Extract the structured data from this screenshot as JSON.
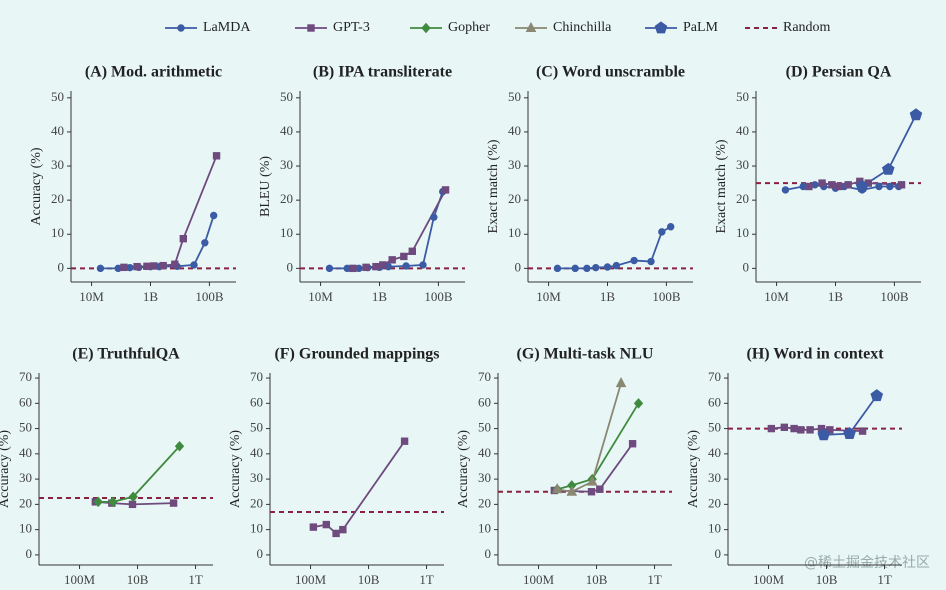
{
  "legend": [
    {
      "name": "LaMDA",
      "color": "#3b5ba5",
      "marker": "circle"
    },
    {
      "name": "GPT-3",
      "color": "#6e4a7e",
      "marker": "square"
    },
    {
      "name": "Gopher",
      "color": "#3f8a3f",
      "marker": "diamond"
    },
    {
      "name": "Chinchilla",
      "color": "#8a8772",
      "marker": "triangle"
    },
    {
      "name": "PaLM",
      "color": "#3b5ba5",
      "marker": "pentagon"
    },
    {
      "name": "Random",
      "color": "#8b2040",
      "marker": "dashed"
    }
  ],
  "watermark": "@稀土掘金技术社区",
  "chart_data": [
    {
      "type": "line",
      "title": "(A) Mod. arithmetic",
      "ylabel": "Accuracy (%)",
      "xscale": "log",
      "xlim": [
        2000000,
        800000000000
      ],
      "xticks": [
        {
          "value": 10000000,
          "label": "10M"
        },
        {
          "value": 1000000000,
          "label": "1B"
        },
        {
          "value": 100000000000,
          "label": "100B"
        }
      ],
      "ylim": [
        -4,
        52
      ],
      "yticks": [
        0,
        10,
        20,
        30,
        40,
        50
      ],
      "random": 0,
      "series": [
        {
          "name": "LaMDA",
          "color": "#3b5ba5",
          "marker": "circle",
          "x": [
            20000000,
            80000000,
            200000000,
            400000000,
            1000000000,
            2000000000,
            8000000000,
            30000000000,
            70000000000,
            140000000000
          ],
          "values": [
            0,
            0,
            0.2,
            0.3,
            0.5,
            0.5,
            0.6,
            1,
            7.5,
            15.5
          ]
        },
        {
          "name": "GPT-3",
          "color": "#6e4a7e",
          "marker": "square",
          "x": [
            125000000,
            350000000,
            760000000,
            1300000000,
            2700000000,
            6700000000,
            13000000000,
            175000000000
          ],
          "values": [
            0.3,
            0.5,
            0.6,
            0.7,
            0.8,
            1.2,
            8.7,
            33
          ]
        }
      ]
    },
    {
      "type": "line",
      "title": "(B) IPA transliterate",
      "ylabel": "BLEU (%)",
      "xscale": "log",
      "xlim": [
        2000000,
        800000000000
      ],
      "xticks": [
        {
          "value": 10000000,
          "label": "10M"
        },
        {
          "value": 1000000000,
          "label": "1B"
        },
        {
          "value": 100000000000,
          "label": "100B"
        }
      ],
      "ylim": [
        -4,
        52
      ],
      "yticks": [
        0,
        10,
        20,
        30,
        40,
        50
      ],
      "random": 0,
      "series": [
        {
          "name": "LaMDA",
          "color": "#3b5ba5",
          "marker": "circle",
          "x": [
            20000000,
            80000000,
            200000000,
            400000000,
            1000000000,
            2000000000,
            8000000000,
            30000000000,
            70000000000,
            140000000000
          ],
          "values": [
            0,
            0,
            0,
            0.2,
            0.3,
            0.5,
            0.7,
            1,
            15,
            22.5
          ]
        },
        {
          "name": "GPT-3",
          "color": "#6e4a7e",
          "marker": "square",
          "x": [
            125000000,
            350000000,
            760000000,
            1300000000,
            2700000000,
            6700000000,
            13000000000,
            175000000000
          ],
          "values": [
            0,
            0.3,
            0.5,
            1,
            2.5,
            3.5,
            5,
            23
          ]
        }
      ]
    },
    {
      "type": "line",
      "title": "(C) Word unscramble",
      "ylabel": "Exact match (%)",
      "xscale": "log",
      "xlim": [
        2000000,
        800000000000
      ],
      "xticks": [
        {
          "value": 10000000,
          "label": "10M"
        },
        {
          "value": 1000000000,
          "label": "1B"
        },
        {
          "value": 100000000000,
          "label": "100B"
        }
      ],
      "ylim": [
        -4,
        52
      ],
      "yticks": [
        0,
        10,
        20,
        30,
        40,
        50
      ],
      "random": 0,
      "series": [
        {
          "name": "LaMDA",
          "color": "#3b5ba5",
          "marker": "circle",
          "x": [
            20000000,
            80000000,
            200000000,
            400000000,
            1000000000,
            2000000000,
            8000000000,
            30000000000,
            70000000000,
            140000000000
          ],
          "values": [
            0,
            0,
            0,
            0.2,
            0.4,
            0.8,
            2.3,
            2,
            10.7,
            12.2
          ]
        }
      ]
    },
    {
      "type": "line",
      "title": "(D) Persian QA",
      "ylabel": "Exact match (%)",
      "xscale": "log",
      "xlim": [
        2000000,
        800000000000
      ],
      "xticks": [
        {
          "value": 10000000,
          "label": "10M"
        },
        {
          "value": 1000000000,
          "label": "1B"
        },
        {
          "value": 100000000000,
          "label": "100B"
        }
      ],
      "ylim": [
        -4,
        52
      ],
      "yticks": [
        0,
        10,
        20,
        30,
        40,
        50
      ],
      "random": 25,
      "series": [
        {
          "name": "LaMDA",
          "color": "#3b5ba5",
          "marker": "circle",
          "x": [
            20000000,
            80000000,
            200000000,
            400000000,
            1000000000,
            2000000000,
            8000000000,
            30000000000,
            70000000000,
            140000000000
          ],
          "values": [
            23,
            24,
            24.5,
            24,
            23.5,
            24,
            23,
            24,
            24,
            24
          ]
        },
        {
          "name": "GPT-3",
          "color": "#6e4a7e",
          "marker": "square",
          "x": [
            125000000,
            350000000,
            760000000,
            1300000000,
            2700000000,
            6700000000,
            13000000000,
            175000000000
          ],
          "values": [
            24,
            25,
            24.5,
            24,
            24.5,
            25.5,
            25,
            24.5
          ]
        },
        {
          "name": "PaLM",
          "color": "#3b5ba5",
          "marker": "pentagon",
          "x": [
            8000000000,
            62000000000,
            540000000000
          ],
          "values": [
            24,
            29,
            45
          ]
        }
      ]
    },
    {
      "type": "line",
      "title": "(E) TruthfulQA",
      "ylabel": "Accuracy (%)",
      "xscale": "log",
      "xlim": [
        4000000,
        4000000000000
      ],
      "xticks": [
        {
          "value": 100000000,
          "label": "100M"
        },
        {
          "value": 10000000000,
          "label": "10B"
        },
        {
          "value": 1000000000000,
          "label": "1T"
        }
      ],
      "ylim": [
        -4,
        72
      ],
      "yticks": [
        0,
        10,
        20,
        30,
        40,
        50,
        60,
        70
      ],
      "random": 22.5,
      "series": [
        {
          "name": "GPT-3",
          "color": "#6e4a7e",
          "marker": "square",
          "x": [
            350000000,
            1300000000,
            6700000000,
            175000000000
          ],
          "values": [
            21,
            20.5,
            20,
            20.5
          ]
        },
        {
          "name": "Gopher",
          "color": "#3f8a3f",
          "marker": "diamond",
          "x": [
            440000000,
            1400000000,
            7100000000,
            280000000000
          ],
          "values": [
            21,
            21,
            23,
            43
          ]
        }
      ]
    },
    {
      "type": "line",
      "title": "(F) Grounded mappings",
      "ylabel": "Accuracy (%)",
      "xscale": "log",
      "xlim": [
        4000000,
        4000000000000
      ],
      "xticks": [
        {
          "value": 100000000,
          "label": "100M"
        },
        {
          "value": 10000000000,
          "label": "10B"
        },
        {
          "value": 1000000000000,
          "label": "1T"
        }
      ],
      "ylim": [
        -4,
        72
      ],
      "yticks": [
        0,
        10,
        20,
        30,
        40,
        50,
        60,
        70
      ],
      "random": 17,
      "series": [
        {
          "name": "GPT-3",
          "color": "#6e4a7e",
          "marker": "square",
          "x": [
            125000000,
            350000000,
            760000000,
            1300000000,
            175000000000
          ],
          "values": [
            11,
            12,
            8.5,
            10,
            45
          ]
        }
      ]
    },
    {
      "type": "line",
      "title": "(G) Multi-task NLU",
      "ylabel": "Accuracy (%)",
      "xscale": "log",
      "xlim": [
        4000000,
        4000000000000
      ],
      "xticks": [
        {
          "value": 100000000,
          "label": "100M"
        },
        {
          "value": 10000000000,
          "label": "10B"
        },
        {
          "value": 1000000000000,
          "label": "1T"
        }
      ],
      "ylim": [
        -4,
        72
      ],
      "yticks": [
        0,
        10,
        20,
        30,
        40,
        50,
        60,
        70
      ],
      "random": 25,
      "series": [
        {
          "name": "GPT-3",
          "color": "#6e4a7e",
          "marker": "square",
          "x": [
            350000000,
            6700000000,
            13000000000,
            175000000000
          ],
          "values": [
            25.5,
            25,
            26,
            44
          ]
        },
        {
          "name": "Gopher",
          "color": "#3f8a3f",
          "marker": "diamond",
          "x": [
            440000000,
            1400000000,
            7100000000,
            280000000000
          ],
          "values": [
            26,
            27.5,
            30,
            60
          ]
        },
        {
          "name": "Chinchilla",
          "color": "#8a8772",
          "marker": "triangle",
          "x": [
            440000000,
            1400000000,
            7100000000,
            70000000000
          ],
          "values": [
            26,
            25,
            29,
            68
          ]
        }
      ]
    },
    {
      "type": "line",
      "title": "(H) Word in context",
      "ylabel": "Accuracy (%)",
      "xscale": "log",
      "xlim": [
        4000000,
        4000000000000
      ],
      "xticks": [
        {
          "value": 100000000,
          "label": "100M"
        },
        {
          "value": 10000000000,
          "label": "10B"
        },
        {
          "value": 1000000000000,
          "label": "1T"
        }
      ],
      "ylim": [
        -4,
        72
      ],
      "yticks": [
        0,
        10,
        20,
        30,
        40,
        50,
        60,
        70
      ],
      "random": 50,
      "series": [
        {
          "name": "GPT-3",
          "color": "#6e4a7e",
          "marker": "square",
          "x": [
            125000000,
            350000000,
            760000000,
            1300000000,
            2700000000,
            6700000000,
            13000000000,
            175000000000
          ],
          "values": [
            50,
            50.5,
            50,
            49.5,
            49.5,
            50,
            49.5,
            49
          ]
        },
        {
          "name": "PaLM",
          "color": "#3b5ba5",
          "marker": "pentagon",
          "x": [
            8000000000,
            62000000000,
            540000000000
          ],
          "values": [
            47.5,
            48,
            63
          ]
        }
      ]
    }
  ]
}
